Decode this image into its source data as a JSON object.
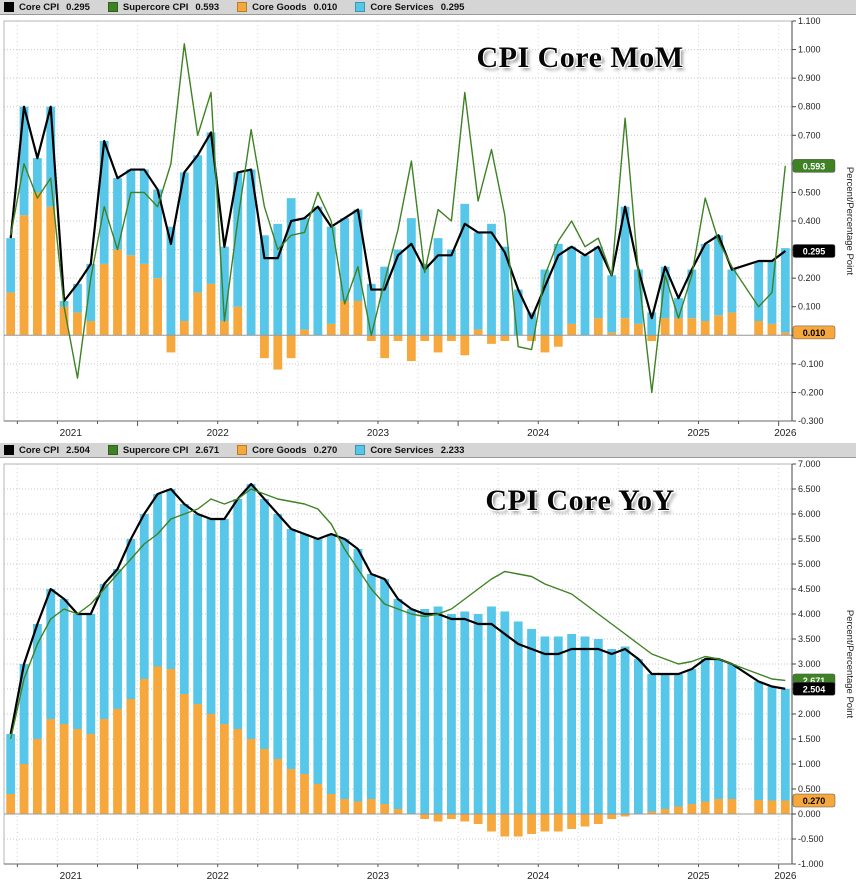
{
  "page": {
    "background": "#ffffff"
  },
  "chart_data": [
    {
      "id": "cpi-core-mom",
      "type": "stacked-bar+line",
      "title": "CPI Core MoM",
      "ylabel": "Percent/Percentage Point",
      "ylim": [
        -0.3,
        1.1
      ],
      "ytick_step": 0.1,
      "grid": "dotted",
      "legend_position": "top",
      "x_tick_labels": [
        "2021",
        "2022",
        "2023",
        "2024",
        "2025",
        "2026"
      ],
      "x": [
        "2021-03",
        "2021-04",
        "2021-05",
        "2021-06",
        "2021-07",
        "2021-08",
        "2021-09",
        "2021-10",
        "2021-11",
        "2021-12",
        "2022-01",
        "2022-02",
        "2022-03",
        "2022-04",
        "2022-05",
        "2022-06",
        "2022-07",
        "2022-08",
        "2022-09",
        "2022-10",
        "2022-11",
        "2022-12",
        "2023-01",
        "2023-02",
        "2023-03",
        "2023-04",
        "2023-05",
        "2023-06",
        "2023-07",
        "2023-08",
        "2023-09",
        "2023-10",
        "2023-11",
        "2023-12",
        "2024-01",
        "2024-02",
        "2024-03",
        "2024-04",
        "2024-05",
        "2024-06",
        "2024-07",
        "2024-08",
        "2024-09",
        "2024-10",
        "2024-11",
        "2024-12",
        "2025-01",
        "2025-02",
        "2025-03",
        "2025-04",
        "2025-05",
        "2025-06",
        "2025-07",
        "2025-08",
        "2025-09",
        "2025-10",
        "2025-11",
        "2025-12",
        "2026-01"
      ],
      "bar_series": [
        {
          "name": "Core Goods",
          "color": "#f7a83d",
          "values": [
            0.15,
            0.42,
            0.5,
            0.45,
            0.1,
            0.08,
            0.05,
            0.25,
            0.3,
            0.28,
            0.25,
            0.2,
            -0.06,
            0.05,
            0.15,
            0.18,
            0.05,
            0.1,
            0.0,
            -0.08,
            -0.12,
            -0.08,
            0.02,
            0.0,
            0.04,
            0.12,
            0.12,
            -0.02,
            -0.08,
            -0.02,
            -0.09,
            -0.02,
            -0.06,
            -0.02,
            -0.07,
            0.02,
            -0.03,
            -0.02,
            0.0,
            -0.02,
            -0.06,
            -0.04,
            0.04,
            0.0,
            0.06,
            0.01,
            0.06,
            0.04,
            -0.02,
            0.06,
            0.06,
            0.06,
            0.05,
            0.07,
            0.08,
            null,
            0.05,
            0.04,
            0.01
          ]
        },
        {
          "name": "Core Services",
          "color": "#56c6e9",
          "values": [
            0.19,
            0.38,
            0.12,
            0.35,
            0.02,
            0.1,
            0.2,
            0.43,
            0.25,
            0.3,
            0.33,
            0.31,
            0.38,
            0.52,
            0.48,
            0.53,
            0.26,
            0.47,
            0.58,
            0.35,
            0.39,
            0.48,
            0.39,
            0.45,
            0.34,
            0.29,
            0.32,
            0.18,
            0.24,
            0.3,
            0.41,
            0.25,
            0.34,
            0.3,
            0.46,
            0.34,
            0.39,
            0.31,
            0.16,
            0.08,
            0.23,
            0.32,
            0.27,
            0.28,
            0.25,
            0.2,
            0.39,
            0.19,
            0.08,
            0.18,
            0.07,
            0.17,
            0.27,
            0.28,
            0.15,
            null,
            0.21,
            0.22,
            0.295
          ]
        }
      ],
      "line_series": [
        {
          "name": "Core CPI",
          "color": "#000000",
          "values": [
            0.34,
            0.8,
            0.62,
            0.8,
            0.12,
            0.18,
            0.25,
            0.68,
            0.55,
            0.58,
            0.58,
            0.51,
            0.32,
            0.57,
            0.63,
            0.71,
            0.31,
            0.57,
            0.58,
            0.27,
            0.27,
            0.4,
            0.41,
            0.45,
            0.38,
            0.41,
            0.44,
            0.16,
            0.16,
            0.28,
            0.32,
            0.23,
            0.28,
            0.28,
            0.39,
            0.36,
            0.36,
            0.29,
            0.16,
            0.06,
            0.17,
            0.28,
            0.31,
            0.28,
            0.31,
            0.21,
            0.45,
            0.23,
            0.06,
            0.24,
            0.13,
            0.23,
            0.32,
            0.35,
            0.23,
            null,
            0.26,
            0.26,
            0.295
          ]
        },
        {
          "name": "Supercore CPI",
          "color": "#3e8224",
          "values": [
            0.35,
            0.6,
            0.48,
            0.55,
            0.1,
            -0.15,
            0.2,
            0.45,
            0.3,
            0.5,
            0.5,
            0.45,
            0.6,
            1.02,
            0.7,
            0.85,
            0.05,
            0.4,
            0.72,
            0.45,
            0.3,
            0.35,
            0.36,
            0.5,
            0.4,
            0.11,
            0.24,
            0.0,
            0.19,
            0.37,
            0.61,
            0.22,
            0.44,
            0.4,
            0.85,
            0.47,
            0.65,
            0.42,
            -0.04,
            -0.05,
            0.21,
            0.33,
            0.4,
            0.31,
            0.34,
            0.21,
            0.76,
            0.22,
            -0.2,
            0.21,
            0.06,
            0.21,
            0.48,
            0.33,
            0.24,
            null,
            0.1,
            0.15,
            0.593
          ]
        }
      ],
      "legend": [
        {
          "label": "Core CPI",
          "value": "0.295",
          "color": "#000000"
        },
        {
          "label": "Supercore CPI",
          "value": "0.593",
          "color": "#3e8224"
        },
        {
          "label": "Core Goods",
          "value": "0.010",
          "color": "#f7a83d"
        },
        {
          "label": "Core Services",
          "value": "0.295",
          "color": "#56c6e9"
        }
      ],
      "axis_badges": [
        {
          "text": "0.593",
          "value": 0.593,
          "bg": "#3e8224",
          "fg": "#ffffff"
        },
        {
          "text": "0.295",
          "value": 0.295,
          "bg": "#000000",
          "fg": "#ffffff"
        },
        {
          "text": "0.010",
          "value": 0.01,
          "bg": "#f7a83d",
          "fg": "#000000"
        }
      ]
    },
    {
      "id": "cpi-core-yoy",
      "type": "stacked-bar+line",
      "title": "CPI Core YoY",
      "ylabel": "Percent/Percentage Point",
      "ylim": [
        -1.0,
        7.0
      ],
      "ytick_step": 0.5,
      "grid": "dotted",
      "legend_position": "top",
      "x_tick_labels": [
        "2021",
        "2022",
        "2023",
        "2024",
        "2025",
        "2026"
      ],
      "x": [
        "2021-03",
        "2021-04",
        "2021-05",
        "2021-06",
        "2021-07",
        "2021-08",
        "2021-09",
        "2021-10",
        "2021-11",
        "2021-12",
        "2022-01",
        "2022-02",
        "2022-03",
        "2022-04",
        "2022-05",
        "2022-06",
        "2022-07",
        "2022-08",
        "2022-09",
        "2022-10",
        "2022-11",
        "2022-12",
        "2023-01",
        "2023-02",
        "2023-03",
        "2023-04",
        "2023-05",
        "2023-06",
        "2023-07",
        "2023-08",
        "2023-09",
        "2023-10",
        "2023-11",
        "2023-12",
        "2024-01",
        "2024-02",
        "2024-03",
        "2024-04",
        "2024-05",
        "2024-06",
        "2024-07",
        "2024-08",
        "2024-09",
        "2024-10",
        "2024-11",
        "2024-12",
        "2025-01",
        "2025-02",
        "2025-03",
        "2025-04",
        "2025-05",
        "2025-06",
        "2025-07",
        "2025-08",
        "2025-09",
        "2025-10",
        "2025-11",
        "2025-12",
        "2026-01"
      ],
      "bar_series": [
        {
          "name": "Core Goods",
          "color": "#f7a83d",
          "values": [
            0.4,
            1.0,
            1.5,
            1.9,
            1.8,
            1.7,
            1.6,
            1.9,
            2.1,
            2.3,
            2.7,
            2.95,
            2.9,
            2.4,
            2.2,
            2.0,
            1.8,
            1.7,
            1.5,
            1.3,
            1.1,
            0.9,
            0.8,
            0.6,
            0.4,
            0.3,
            0.25,
            0.3,
            0.2,
            0.1,
            0.0,
            -0.1,
            -0.15,
            -0.1,
            -0.15,
            -0.2,
            -0.35,
            -0.45,
            -0.45,
            -0.4,
            -0.35,
            -0.35,
            -0.3,
            -0.25,
            -0.2,
            -0.1,
            -0.05,
            0.0,
            0.05,
            0.1,
            0.15,
            0.2,
            0.25,
            0.3,
            0.3,
            null,
            0.28,
            0.27,
            0.27
          ]
        },
        {
          "name": "Core Services",
          "color": "#56c6e9",
          "values": [
            1.2,
            2.0,
            2.3,
            2.6,
            2.5,
            2.3,
            2.4,
            2.7,
            2.8,
            3.2,
            3.3,
            3.45,
            3.6,
            3.8,
            3.8,
            3.9,
            4.1,
            4.6,
            5.1,
            5.0,
            4.9,
            4.8,
            4.8,
            4.9,
            5.2,
            5.2,
            5.05,
            4.5,
            4.5,
            4.2,
            4.1,
            4.1,
            4.15,
            4.0,
            4.05,
            4.0,
            4.15,
            4.05,
            3.85,
            3.7,
            3.55,
            3.55,
            3.6,
            3.55,
            3.5,
            3.3,
            3.35,
            3.1,
            2.75,
            2.7,
            2.65,
            2.7,
            2.85,
            2.8,
            2.7,
            null,
            2.37,
            2.28,
            2.233
          ]
        }
      ],
      "line_series": [
        {
          "name": "Core CPI",
          "color": "#000000",
          "values": [
            1.6,
            3.0,
            3.8,
            4.5,
            4.3,
            4.0,
            4.0,
            4.6,
            4.9,
            5.5,
            6.0,
            6.4,
            6.5,
            6.2,
            6.0,
            5.9,
            5.9,
            6.3,
            6.6,
            6.3,
            6.0,
            5.7,
            5.6,
            5.5,
            5.6,
            5.5,
            5.3,
            4.8,
            4.7,
            4.3,
            4.1,
            4.0,
            4.0,
            3.9,
            3.9,
            3.8,
            3.8,
            3.6,
            3.4,
            3.3,
            3.2,
            3.2,
            3.3,
            3.3,
            3.3,
            3.2,
            3.3,
            3.1,
            2.8,
            2.8,
            2.8,
            2.9,
            3.1,
            3.1,
            3.0,
            null,
            2.65,
            2.55,
            2.504
          ]
        },
        {
          "name": "Supercore CPI",
          "color": "#3e8224",
          "values": [
            1.5,
            2.7,
            3.4,
            3.9,
            4.1,
            4.0,
            4.2,
            4.5,
            4.8,
            5.1,
            5.4,
            5.6,
            5.9,
            6.0,
            6.1,
            6.3,
            6.2,
            6.3,
            6.5,
            6.4,
            6.3,
            6.25,
            6.2,
            6.1,
            5.8,
            5.3,
            4.9,
            4.5,
            4.2,
            4.1,
            4.0,
            3.95,
            4.0,
            4.1,
            4.3,
            4.5,
            4.7,
            4.85,
            4.8,
            4.75,
            4.6,
            4.5,
            4.4,
            4.2,
            4.0,
            3.8,
            3.6,
            3.4,
            3.2,
            3.1,
            3.0,
            3.05,
            3.15,
            3.1,
            3.0,
            null,
            2.8,
            2.7,
            2.671
          ]
        }
      ],
      "legend": [
        {
          "label": "Core CPI",
          "value": "2.504",
          "color": "#000000"
        },
        {
          "label": "Supercore CPI",
          "value": "2.671",
          "color": "#3e8224"
        },
        {
          "label": "Core Goods",
          "value": "0.270",
          "color": "#f7a83d"
        },
        {
          "label": "Core Services",
          "value": "2.233",
          "color": "#56c6e9"
        }
      ],
      "axis_badges": [
        {
          "text": "2.671",
          "value": 2.671,
          "bg": "#3e8224",
          "fg": "#ffffff"
        },
        {
          "text": "2.504",
          "value": 2.504,
          "bg": "#000000",
          "fg": "#ffffff"
        },
        {
          "text": "0.270",
          "value": 0.27,
          "bg": "#f7a83d",
          "fg": "#000000"
        }
      ]
    }
  ]
}
